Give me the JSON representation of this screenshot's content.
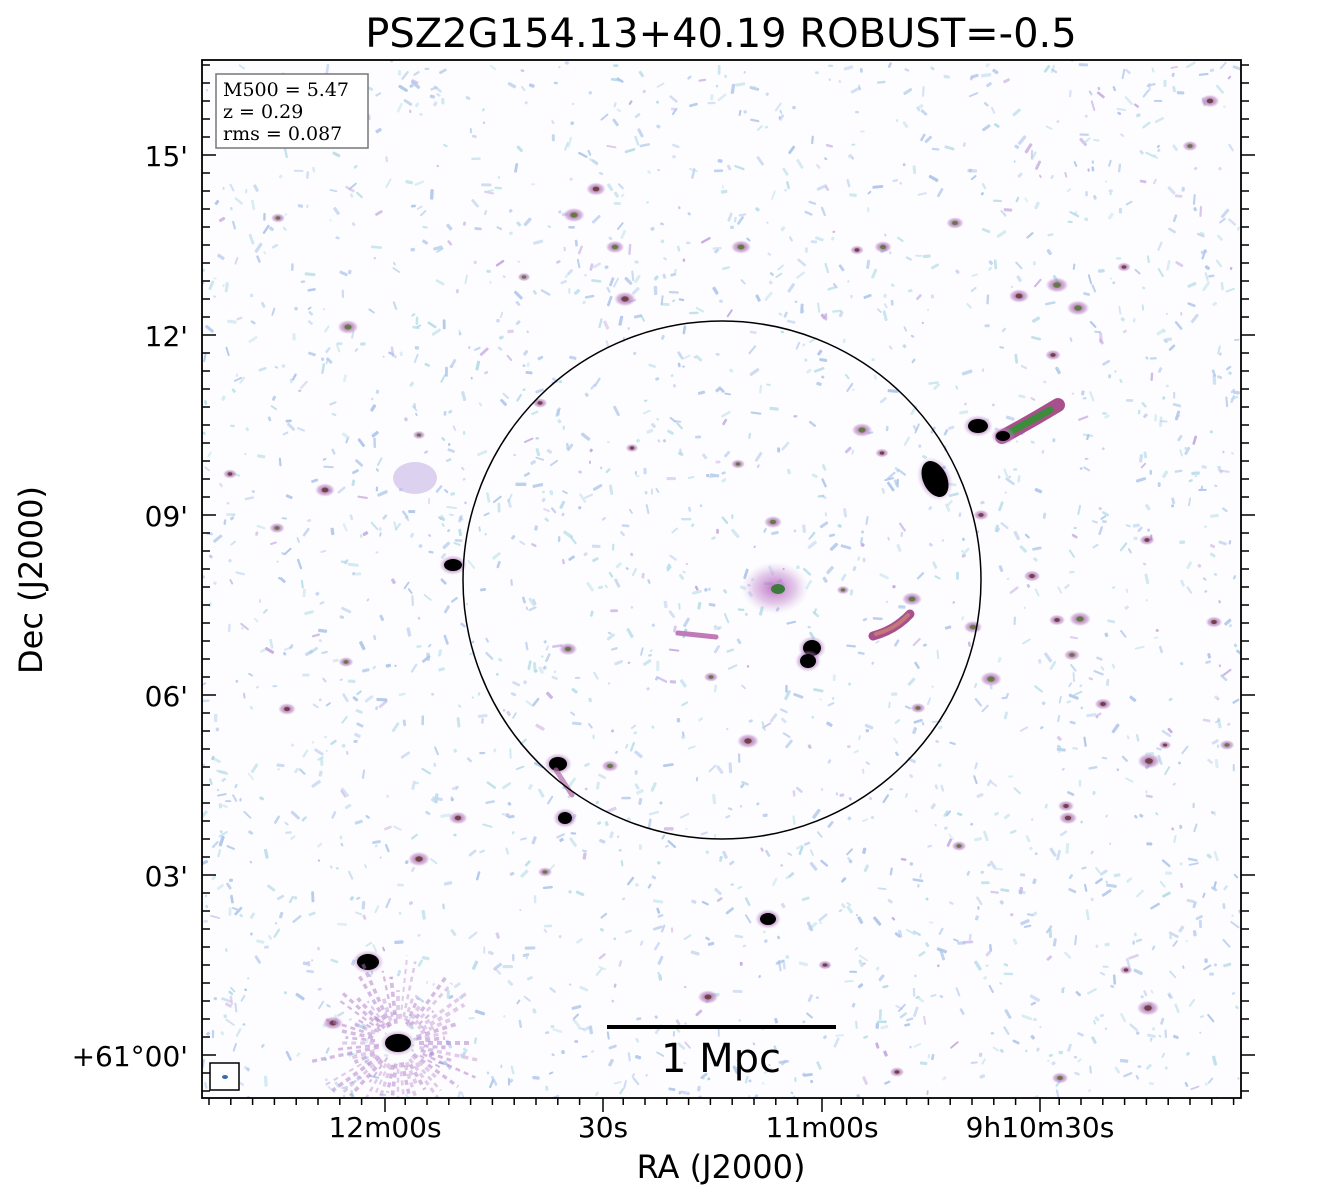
{
  "title": "PSZ2G154.13+40.19 ROBUST=-0.5",
  "info_box": {
    "m500": "M500 = 5.47",
    "z": "z = 0.29",
    "rms": "rms = 0.087"
  },
  "axes": {
    "xlabel": "RA (J2000)",
    "ylabel": "Dec (J2000)",
    "x_ticks": [
      "12m00s",
      "30s",
      "11m00s",
      "9h10m30s"
    ],
    "y_ticks": [
      "15'",
      "12'",
      "09'",
      "06'",
      "03'",
      "+61°00'"
    ]
  },
  "scale_bar": {
    "label": "1 Mpc"
  },
  "colors": {
    "noise_blue": "#aec6ea",
    "noise_cyan": "#b7dde8",
    "source_purple": "#b27ac8",
    "source_core": "#000000",
    "source_green": "#3c8c3c",
    "circle": "#000000"
  }
}
